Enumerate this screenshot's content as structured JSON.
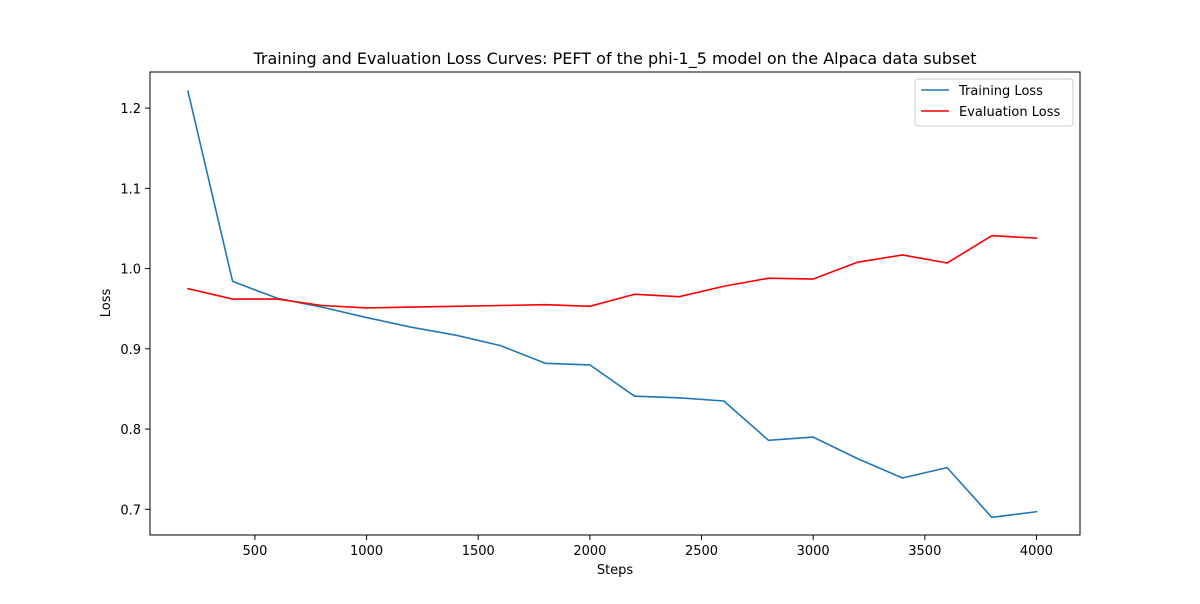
{
  "chart_data": {
    "type": "line",
    "title": "Training and Evaluation Loss Curves: PEFT of the phi-1_5 model on the Alpaca data subset",
    "xlabel": "Steps",
    "ylabel": "Loss",
    "xlim": [
      30,
      4195
    ],
    "ylim": [
      0.668,
      1.245
    ],
    "x_ticks": [
      500,
      1000,
      1500,
      2000,
      2500,
      3000,
      3500,
      4000
    ],
    "x_tick_labels": [
      "500",
      "1000",
      "1500",
      "2000",
      "2500",
      "3000",
      "3500",
      "4000"
    ],
    "y_ticks": [
      0.7,
      0.8,
      0.9,
      1.0,
      1.1,
      1.2
    ],
    "y_tick_labels": [
      "0.7",
      "0.8",
      "0.9",
      "1.0",
      "1.1",
      "1.2"
    ],
    "grid": false,
    "legend_position": "top-right",
    "x": [
      200,
      400,
      600,
      800,
      1000,
      1200,
      1400,
      1600,
      1800,
      2000,
      2200,
      2400,
      2600,
      2800,
      3000,
      3200,
      3400,
      3600,
      3800,
      4000
    ],
    "series": [
      {
        "name": "Training Loss",
        "color": "#1f77b4",
        "values": [
          1.221,
          0.984,
          0.963,
          0.952,
          0.939,
          0.927,
          0.917,
          0.904,
          0.882,
          0.88,
          0.841,
          0.839,
          0.835,
          0.786,
          0.79,
          0.763,
          0.739,
          0.752,
          0.69,
          0.697
        ]
      },
      {
        "name": "Evaluation Loss",
        "color": "#ff0000",
        "values": [
          0.975,
          0.962,
          0.962,
          0.954,
          0.951,
          0.952,
          0.953,
          0.954,
          0.955,
          0.953,
          0.968,
          0.965,
          0.978,
          0.988,
          0.987,
          1.008,
          1.017,
          1.007,
          1.041,
          1.038
        ]
      }
    ]
  }
}
